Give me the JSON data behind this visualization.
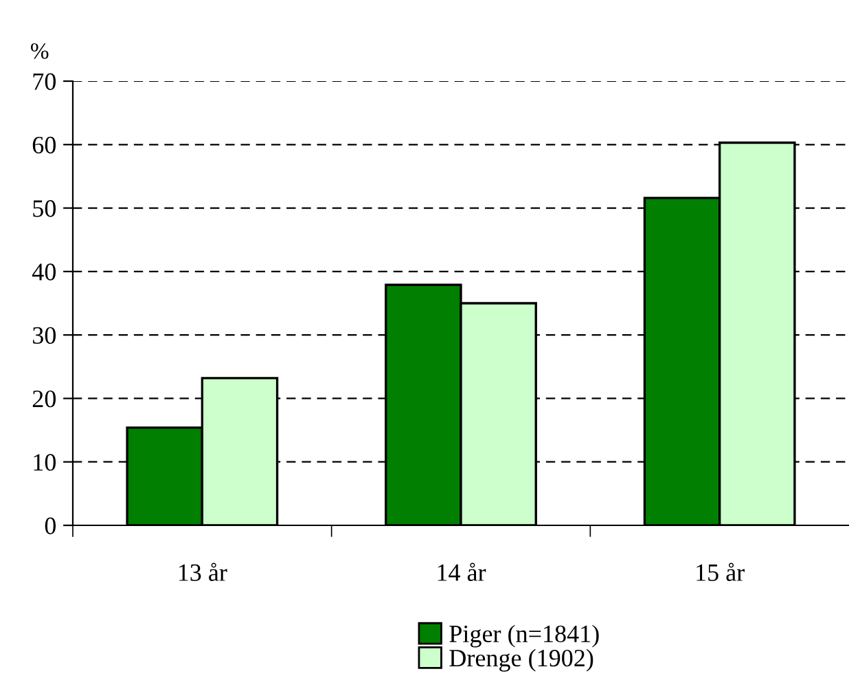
{
  "chart_data": {
    "type": "bar",
    "ylabel": "%",
    "categories": [
      "13 år",
      "14 år",
      "15 år"
    ],
    "series": [
      {
        "name": "Piger (n=1841)",
        "color": "#007f00",
        "values": [
          15.4,
          37.9,
          51.6
        ]
      },
      {
        "name": "Drenge (1902)",
        "color": "#ccffcc",
        "values": [
          23.2,
          35.0,
          60.3
        ]
      }
    ],
    "ylim": [
      0,
      70
    ],
    "yticks": [
      0,
      10,
      20,
      30,
      40,
      50,
      60,
      70
    ],
    "grid": "y",
    "legend": "bottom"
  }
}
